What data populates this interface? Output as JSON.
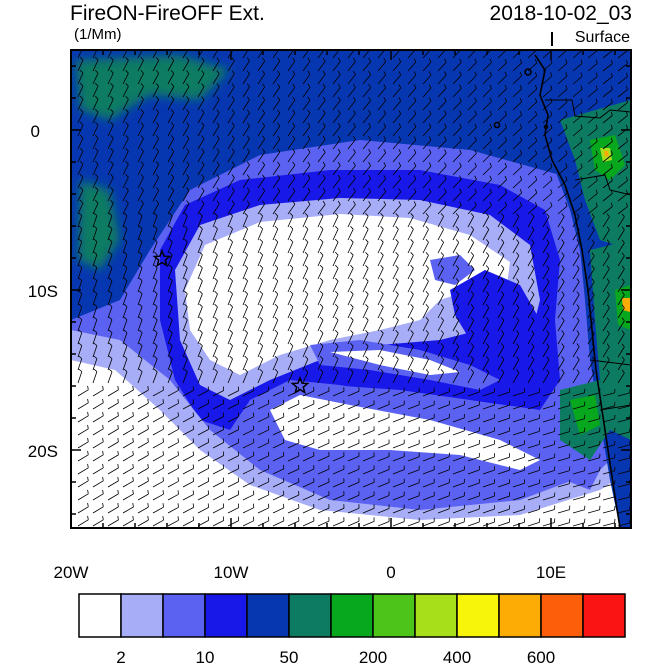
{
  "header": {
    "title": "FireON-FireOFF Ext.",
    "units": "(1/Mm)",
    "datetime": "2018-10-02_03",
    "level": "Surface"
  },
  "axes": {
    "x_ticks": [
      "20W",
      "10W",
      "0",
      "10E"
    ],
    "y_ticks": [
      "0",
      "10S",
      "20S"
    ]
  },
  "colorbar": {
    "labels": [
      "2",
      "10",
      "50",
      "200",
      "400",
      "600"
    ],
    "colors": [
      "#ffffff",
      "#a7adf7",
      "#5b62f2",
      "#1818e8",
      "#0737b0",
      "#0c7b62",
      "#07a81d",
      "#4dc41a",
      "#a8df1b",
      "#f6f50a",
      "#fdac06",
      "#fc5e0a",
      "#fb1414"
    ]
  },
  "markers": [
    {
      "name": "star-marker-west",
      "symbol": "star"
    },
    {
      "name": "star-marker-south",
      "symbol": "star"
    }
  ]
}
